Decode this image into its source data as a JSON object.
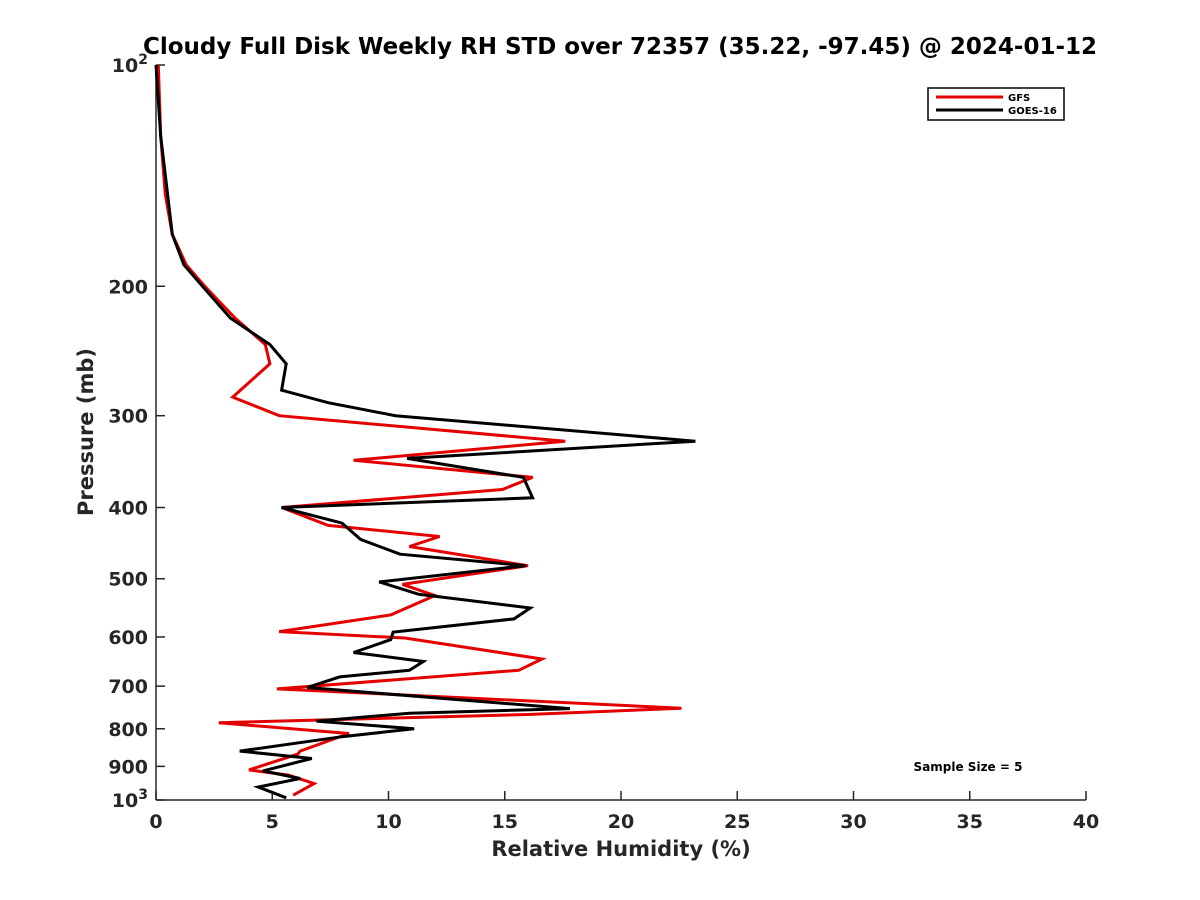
{
  "chart_data": {
    "type": "line",
    "title": "Cloudy Full Disk Weekly RH STD over 72357 (35.22, -97.45) @ 2024-01-12",
    "xlabel": "Relative Humidity (%)",
    "ylabel": "Pressure (mb)",
    "xlim": [
      0,
      40
    ],
    "ylim": [
      100,
      1000
    ],
    "y_scale": "log",
    "y_reversed": true,
    "x_ticks": [
      "0",
      "5",
      "10",
      "15",
      "20",
      "25",
      "30",
      "35",
      "40"
    ],
    "y_ticks": [
      {
        "value": 100,
        "base": "10",
        "exp": "2"
      },
      {
        "value": 200,
        "label": "200"
      },
      {
        "value": 300,
        "label": "300"
      },
      {
        "value": 400,
        "label": "400"
      },
      {
        "value": 500,
        "label": "500"
      },
      {
        "value": 600,
        "label": "600"
      },
      {
        "value": 700,
        "label": "700"
      },
      {
        "value": 800,
        "label": "800"
      },
      {
        "value": 900,
        "label": "900"
      },
      {
        "value": 1000,
        "base": "10",
        "exp": "3"
      }
    ],
    "grid": false,
    "legend_position": "top-right",
    "annotation": "Sample Size = 5",
    "series": [
      {
        "name": "GFS",
        "color": "#e50000",
        "points": [
          [
            0.1,
            100
          ],
          [
            0.2,
            125
          ],
          [
            0.4,
            150
          ],
          [
            0.7,
            170
          ],
          [
            1.3,
            187
          ],
          [
            2.1,
            200
          ],
          [
            3.4,
            221
          ],
          [
            4.7,
            240
          ],
          [
            4.9,
            255
          ],
          [
            3.3,
            283
          ],
          [
            5.3,
            300
          ],
          [
            17.6,
            325
          ],
          [
            8.5,
            345
          ],
          [
            16.2,
            364
          ],
          [
            14.9,
            378
          ],
          [
            5.4,
            400
          ],
          [
            7.4,
            423
          ],
          [
            12.2,
            438
          ],
          [
            10.9,
            452
          ],
          [
            16.0,
            480
          ],
          [
            10.6,
            509
          ],
          [
            12.0,
            527
          ],
          [
            10.1,
            560
          ],
          [
            5.3,
            590
          ],
          [
            10.7,
            602
          ],
          [
            16.6,
            643
          ],
          [
            15.6,
            666
          ],
          [
            5.2,
            706
          ],
          [
            22.6,
            750
          ],
          [
            16.0,
            765
          ],
          [
            2.7,
            785
          ],
          [
            8.3,
            812
          ],
          [
            6.2,
            858
          ],
          [
            6.1,
            866
          ],
          [
            4.0,
            910
          ],
          [
            5.7,
            925
          ],
          [
            6.8,
            950
          ],
          [
            5.9,
            985
          ]
        ]
      },
      {
        "name": "GOES-16",
        "color": "#000000",
        "points": [
          [
            0.0,
            100
          ],
          [
            0.2,
            125
          ],
          [
            0.5,
            150
          ],
          [
            0.7,
            170
          ],
          [
            1.2,
            187
          ],
          [
            2.0,
            200
          ],
          [
            3.2,
            221
          ],
          [
            4.9,
            240
          ],
          [
            5.6,
            255
          ],
          [
            5.4,
            277
          ],
          [
            7.4,
            288
          ],
          [
            10.3,
            300
          ],
          [
            23.2,
            325
          ],
          [
            10.8,
            343
          ],
          [
            15.8,
            364
          ],
          [
            16.2,
            388
          ],
          [
            5.4,
            400
          ],
          [
            8.0,
            420
          ],
          [
            8.8,
            442
          ],
          [
            10.5,
            463
          ],
          [
            15.9,
            480
          ],
          [
            9.6,
            505
          ],
          [
            11.3,
            525
          ],
          [
            16.1,
            548
          ],
          [
            15.4,
            567
          ],
          [
            10.2,
            591
          ],
          [
            10.1,
            605
          ],
          [
            8.5,
            630
          ],
          [
            11.5,
            648
          ],
          [
            10.9,
            666
          ],
          [
            7.9,
            680
          ],
          [
            6.5,
            703
          ],
          [
            17.8,
            751
          ],
          [
            10.9,
            762
          ],
          [
            6.9,
            781
          ],
          [
            11.1,
            800
          ],
          [
            8.0,
            820
          ],
          [
            3.6,
            858
          ],
          [
            6.7,
            878
          ],
          [
            4.6,
            913
          ],
          [
            6.2,
            935
          ],
          [
            4.4,
            960
          ],
          [
            5.6,
            993
          ]
        ]
      }
    ]
  }
}
